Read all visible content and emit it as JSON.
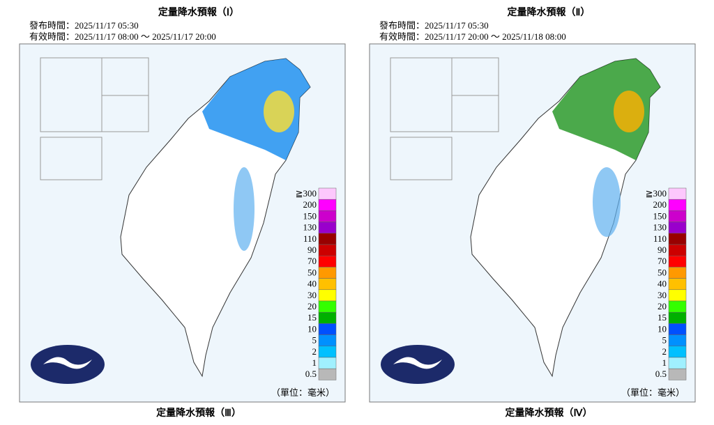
{
  "panels": [
    {
      "title": "定量降水預報（Ⅰ）",
      "issued": "發布時間：2025/11/17 05:30",
      "valid": "有效時間：2025/11/17 08:00 ～ 2025/11/17 20:00"
    },
    {
      "title": "定量降水預報（Ⅱ）",
      "issued": "發布時間：2025/11/17 05:30",
      "valid": "有效時間：2025/11/17 20:00 ～ 2025/11/18 08:00"
    }
  ],
  "next_panels": [
    {
      "title": "定量降水預報（Ⅲ）"
    },
    {
      "title": "定量降水預報（Ⅳ）"
    }
  ],
  "legend": {
    "labels": [
      "≧300",
      "200",
      "150",
      "130",
      "110",
      "90",
      "70",
      "50",
      "40",
      "30",
      "20",
      "15",
      "10",
      "5",
      "2",
      "1",
      "0.5"
    ],
    "colors": [
      "#fdc8fd",
      "#ff00ff",
      "#cc00cc",
      "#9900cc",
      "#990000",
      "#cc0000",
      "#ff0000",
      "#ff9900",
      "#ffc000",
      "#ffff00",
      "#33ff00",
      "#00b000",
      "#0050ff",
      "#0090ff",
      "#00c0ff",
      "#a0f0ff",
      "#b8b8b8"
    ],
    "unit": "（單位：毫米）"
  }
}
